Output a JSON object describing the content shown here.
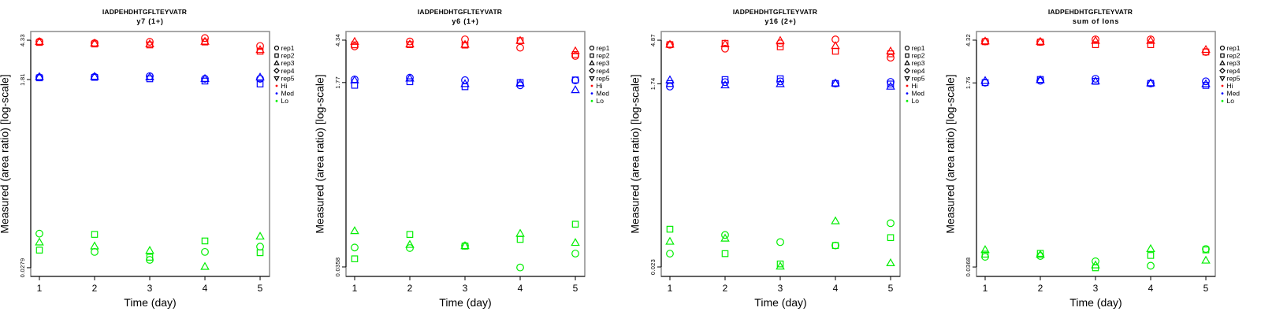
{
  "colors": {
    "Hi": "#ff0000",
    "Med": "#0000ff",
    "Lo": "#00ee00",
    "frame": "#8c8c8c"
  },
  "legend": {
    "position": "right",
    "entries": [
      {
        "label": "rep1",
        "symbol": "circle"
      },
      {
        "label": "rep2",
        "symbol": "square"
      },
      {
        "label": "rep3",
        "symbol": "triangle"
      },
      {
        "label": "rep4",
        "symbol": "diamond"
      },
      {
        "label": "rep5",
        "symbol": "triangle-down"
      },
      {
        "label": "Hi",
        "symbol": "dot",
        "color": "#ff0000"
      },
      {
        "label": "Med",
        "symbol": "dot",
        "color": "#0000ff"
      },
      {
        "label": "Lo",
        "symbol": "dot",
        "color": "#00ee00"
      }
    ]
  },
  "chart_data": [
    {
      "type": "scatter",
      "title": "IADPEHDHTGFLTEYVATR",
      "subtitle": "y7 (1+)",
      "xlabel": "Time (day)",
      "ylabel": "Measured (area ratio) [log-scale]",
      "yscale": "log",
      "grid": false,
      "legend_position": "right",
      "xlim": [
        0.843,
        5.171
      ],
      "ylim": [
        0.023,
        5.25
      ],
      "x_ticks": [
        1,
        2,
        3,
        4,
        5
      ],
      "y_ticks": [
        {
          "value": 4.33,
          "label": "4.33"
        },
        {
          "value": 1.81,
          "label": "1.81"
        },
        {
          "value": 0.0279,
          "label": "0.0279"
        }
      ],
      "x": [
        1,
        2,
        3,
        4,
        5
      ],
      "series": [
        {
          "level": "Hi",
          "replicate": "rep1",
          "y": [
            4.2,
            4.06,
            4.18,
            4.54,
            3.81
          ]
        },
        {
          "level": "Hi",
          "replicate": "rep2",
          "y": [
            4.12,
            3.98,
            3.9,
            4.16,
            3.39
          ]
        },
        {
          "level": "Hi",
          "replicate": "rep3",
          "y": [
            4.18,
            4.04,
            3.97,
            4.2,
            3.49
          ]
        },
        {
          "level": "Med",
          "replicate": "rep1",
          "y": [
            1.9,
            1.92,
            1.95,
            1.84,
            1.84
          ]
        },
        {
          "level": "Med",
          "replicate": "rep2",
          "y": [
            1.88,
            1.9,
            1.84,
            1.75,
            1.64
          ]
        },
        {
          "level": "Med",
          "replicate": "rep3",
          "y": [
            1.92,
            1.93,
            1.91,
            1.84,
            1.9
          ]
        },
        {
          "level": "Lo",
          "replicate": "rep1",
          "y": [
            0.0594,
            0.0396,
            0.0332,
            0.0396,
            0.0445
          ]
        },
        {
          "level": "Lo",
          "replicate": "rep2",
          "y": [
            0.0412,
            0.0584,
            0.0352,
            0.0505,
            0.0389
          ]
        },
        {
          "level": "Lo",
          "replicate": "rep3",
          "y": [
            0.049,
            0.0449,
            0.0407,
            0.0285,
            0.0558
          ]
        }
      ]
    },
    {
      "type": "scatter",
      "title": "IADPEHDHTGFLTEYVATR",
      "subtitle": "y6 (1+)",
      "xlabel": "Time (day)",
      "ylabel": "Measured (area ratio) [log-scale]",
      "yscale": "log",
      "grid": false,
      "legend_position": "right",
      "xlim": [
        0.843,
        5.171
      ],
      "ylim": [
        0.0293,
        5.21
      ],
      "x_ticks": [
        1,
        2,
        3,
        4,
        5
      ],
      "y_ticks": [
        {
          "value": 4.34,
          "label": "4.34"
        },
        {
          "value": 1.77,
          "label": "1.77"
        },
        {
          "value": 0.0358,
          "label": "0.0358"
        }
      ],
      "x": [
        1,
        2,
        3,
        4,
        5
      ],
      "series": [
        {
          "level": "Hi",
          "replicate": "rep1",
          "y": [
            3.8,
            4.22,
            4.41,
            3.7,
            3.11
          ]
        },
        {
          "level": "Hi",
          "replicate": "rep2",
          "y": [
            3.93,
            3.95,
            3.91,
            4.29,
            3.2
          ]
        },
        {
          "level": "Hi",
          "replicate": "rep3",
          "y": [
            4.2,
            3.98,
            3.95,
            4.29,
            3.44
          ]
        },
        {
          "level": "Med",
          "replicate": "rep1",
          "y": [
            1.89,
            1.96,
            1.86,
            1.67,
            1.85
          ]
        },
        {
          "level": "Med",
          "replicate": "rep2",
          "y": [
            1.67,
            1.8,
            1.62,
            1.77,
            1.87
          ]
        },
        {
          "level": "Med",
          "replicate": "rep3",
          "y": [
            1.86,
            1.93,
            1.72,
            1.74,
            1.51
          ]
        },
        {
          "level": "Lo",
          "replicate": "rep1",
          "y": [
            0.054,
            0.0534,
            0.056,
            0.0354,
            0.0475
          ]
        },
        {
          "level": "Lo",
          "replicate": "rep2",
          "y": [
            0.0425,
            0.0712,
            0.0556,
            0.0641,
            0.0884
          ]
        },
        {
          "level": "Lo",
          "replicate": "rep3",
          "y": [
            0.0766,
            0.0573,
            0.0558,
            0.0724,
            0.0597
          ]
        }
      ]
    },
    {
      "type": "scatter",
      "title": "IADPEHDHTGFLTEYVATR",
      "subtitle": "y16 (2+)",
      "xlabel": "Time (day)",
      "ylabel": "Measured (area ratio) [log-scale]",
      "yscale": "log",
      "grid": false,
      "legend_position": "right",
      "xlim": [
        0.843,
        5.171
      ],
      "ylim": [
        0.0184,
        5.98
      ],
      "x_ticks": [
        1,
        2,
        3,
        4,
        5
      ],
      "y_ticks": [
        {
          "value": 4.87,
          "label": "4.87"
        },
        {
          "value": 1.74,
          "label": "1.74"
        },
        {
          "value": 0.023,
          "label": "0.023"
        }
      ],
      "x": [
        1,
        2,
        3,
        4,
        5
      ],
      "series": [
        {
          "level": "Hi",
          "replicate": "rep1",
          "y": [
            4.38,
            3.99,
            4.52,
            4.96,
            3.22
          ]
        },
        {
          "level": "Hi",
          "replicate": "rep2",
          "y": [
            4.38,
            4.52,
            4.17,
            3.75,
            3.53
          ]
        },
        {
          "level": "Hi",
          "replicate": "rep3",
          "y": [
            4.4,
            4.44,
            4.81,
            4.25,
            3.75
          ]
        },
        {
          "level": "Med",
          "replicate": "rep1",
          "y": [
            1.63,
            1.81,
            1.84,
            1.75,
            1.82
          ]
        },
        {
          "level": "Med",
          "replicate": "rep2",
          "y": [
            1.75,
            1.92,
            1.96,
            1.75,
            1.73
          ]
        },
        {
          "level": "Med",
          "replicate": "rep3",
          "y": [
            1.9,
            1.68,
            1.73,
            1.76,
            1.63
          ]
        },
        {
          "level": "Lo",
          "replicate": "rep1",
          "y": [
            0.0315,
            0.049,
            0.0414,
            0.0382,
            0.0647
          ]
        },
        {
          "level": "Lo",
          "replicate": "rep2",
          "y": [
            0.0561,
            0.0315,
            0.0247,
            0.0382,
            0.046
          ]
        },
        {
          "level": "Lo",
          "replicate": "rep3",
          "y": [
            0.0419,
            0.0451,
            0.0233,
            0.0679,
            0.0252
          ]
        }
      ]
    },
    {
      "type": "scatter",
      "title": "IADPEHDHTGFLTEYVATR",
      "subtitle": "sum of Ions",
      "xlabel": "Time (day)",
      "ylabel": "Measured (area ratio) [log-scale]",
      "yscale": "log",
      "grid": false,
      "legend_position": "right",
      "xlim": [
        0.843,
        5.171
      ],
      "ylim": [
        0.0302,
        5.18
      ],
      "x_ticks": [
        1,
        2,
        3,
        4,
        5
      ],
      "y_ticks": [
        {
          "value": 4.32,
          "label": "4.32"
        },
        {
          "value": 1.76,
          "label": "1.76"
        },
        {
          "value": 0.0368,
          "label": "0.0368"
        }
      ],
      "x": [
        1,
        2,
        3,
        4,
        5
      ],
      "series": [
        {
          "level": "Hi",
          "replicate": "rep1",
          "y": [
            4.2,
            4.16,
            4.39,
            4.39,
            3.37
          ]
        },
        {
          "level": "Hi",
          "replicate": "rep2",
          "y": [
            4.18,
            4.14,
            3.93,
            3.93,
            3.37
          ]
        },
        {
          "level": "Hi",
          "replicate": "rep3",
          "y": [
            4.22,
            4.18,
            4.27,
            4.27,
            3.53
          ]
        },
        {
          "level": "Med",
          "replicate": "rep1",
          "y": [
            1.77,
            1.84,
            1.92,
            1.74,
            1.82
          ]
        },
        {
          "level": "Med",
          "replicate": "rep2",
          "y": [
            1.77,
            1.89,
            1.82,
            1.74,
            1.67
          ]
        },
        {
          "level": "Med",
          "replicate": "rep3",
          "y": [
            1.84,
            1.87,
            1.82,
            1.75,
            1.72
          ]
        },
        {
          "level": "Lo",
          "replicate": "rep1",
          "y": [
            0.0456,
            0.0464,
            0.0415,
            0.0378,
            0.0538
          ]
        },
        {
          "level": "Lo",
          "replicate": "rep2",
          "y": [
            0.0482,
            0.049,
            0.0362,
            0.0469,
            0.0527
          ]
        },
        {
          "level": "Lo",
          "replicate": "rep3",
          "y": [
            0.0527,
            0.0477,
            0.0382,
            0.0538,
            0.0422
          ]
        }
      ]
    }
  ]
}
